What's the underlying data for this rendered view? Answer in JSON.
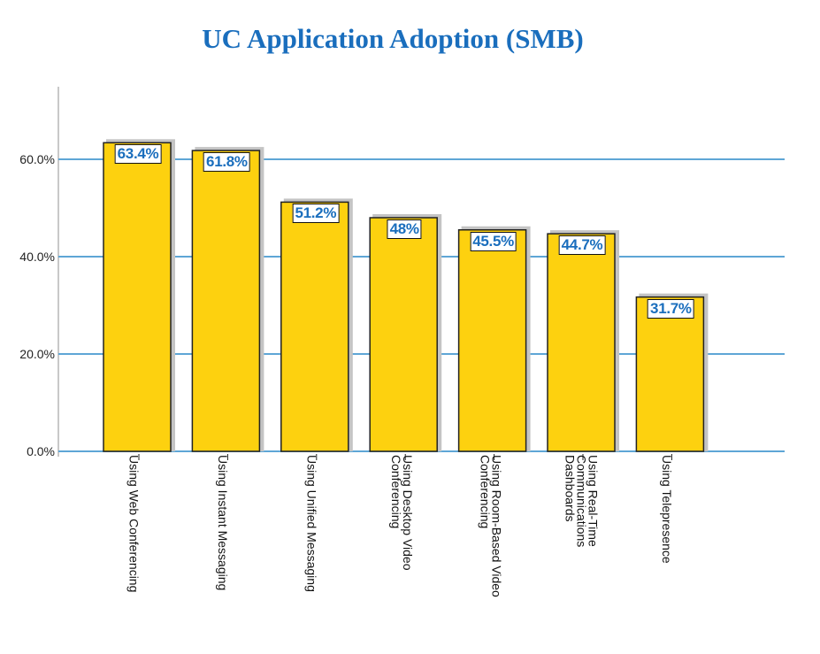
{
  "chart_data": {
    "type": "bar",
    "title": "UC Application Adoption (SMB)",
    "categories": [
      "Using Web Conferencing",
      "Using Instant Messaging",
      "Using Unified Messaging",
      "Using Desktop Video\nConferencing",
      "Using Room-Based Video\nConferencing",
      "Using Real-Time\nCommunications\nDashboards",
      "Using Telepresence"
    ],
    "values": [
      63.4,
      61.8,
      51.2,
      48,
      45.5,
      44.7,
      31.7
    ],
    "data_labels": [
      "63.4%",
      "61.8%",
      "51.2%",
      "48%",
      "45.5%",
      "44.7%",
      "31.7%"
    ],
    "yticks": [
      0,
      20,
      40,
      60
    ],
    "ytick_labels": [
      "0.0%",
      "20.0%",
      "40.0%",
      "60.0%"
    ],
    "ylim": [
      0,
      75
    ],
    "xlabel": "",
    "ylabel": "",
    "grid": true,
    "colors": {
      "bar": "#fdd10f",
      "grid": "#5ea6d6",
      "title": "#1a6ebd",
      "label": "#1a6ebd"
    }
  }
}
